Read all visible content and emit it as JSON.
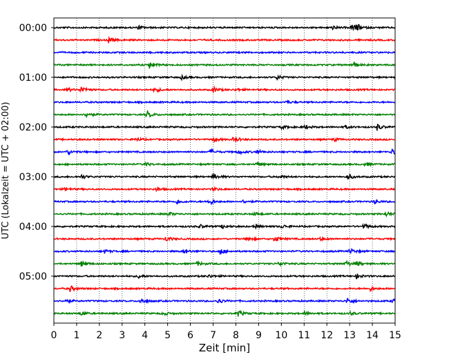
{
  "chart_data": {
    "type": "line",
    "title": "",
    "xlabel": "Zeit  [min]",
    "ylabel": "UTC (Lokalzeit = UTC + 02:00)",
    "xlim": [
      0,
      15
    ],
    "x_ticks": [
      "0",
      "1",
      "2",
      "3",
      "4",
      "5",
      "6",
      "7",
      "8",
      "9",
      "10",
      "11",
      "12",
      "13",
      "14",
      "15"
    ],
    "grid": "vertical dotted lines at each minute",
    "row_interval_min": 15,
    "row_count": 24,
    "y_tick_labels": [
      "00:00",
      "01:00",
      "02:00",
      "03:00",
      "04:00",
      "05:00"
    ],
    "trace_colors": [
      "#000000",
      "#ff0000",
      "#0000ff",
      "#008000"
    ],
    "series": [
      {
        "start": "00:00",
        "events": [
          {
            "t": 3.7,
            "a": 0.3
          },
          {
            "t": 12.2,
            "a": 0.3
          },
          {
            "t": 13.1,
            "a": 0.55
          },
          {
            "t": 13.3,
            "a": 0.5
          }
        ]
      },
      {
        "start": "00:15",
        "events": [
          {
            "t": 2.4,
            "a": 0.45
          }
        ]
      },
      {
        "start": "00:30",
        "events": []
      },
      {
        "start": "00:45",
        "events": [
          {
            "t": 4.2,
            "a": 0.55
          },
          {
            "t": 13.1,
            "a": 0.6
          }
        ]
      },
      {
        "start": "01:00",
        "events": [
          {
            "t": 5.6,
            "a": 0.3
          },
          {
            "t": 9.8,
            "a": 0.35
          }
        ]
      },
      {
        "start": "01:15",
        "events": [
          {
            "t": 0.6,
            "a": 0.3
          },
          {
            "t": 1.2,
            "a": 0.55
          },
          {
            "t": 4.4,
            "a": 0.45
          },
          {
            "t": 7.0,
            "a": 0.4
          },
          {
            "t": 8.0,
            "a": 0.2
          }
        ]
      },
      {
        "start": "01:30",
        "events": [
          {
            "t": 10.2,
            "a": 0.2
          }
        ]
      },
      {
        "start": "01:45",
        "events": [
          {
            "t": 1.4,
            "a": 0.45
          },
          {
            "t": 4.1,
            "a": 0.5
          }
        ]
      },
      {
        "start": "02:00",
        "events": [
          {
            "t": 10.0,
            "a": 0.3
          },
          {
            "t": 11.0,
            "a": 0.35
          },
          {
            "t": 12.8,
            "a": 0.25
          },
          {
            "t": 14.2,
            "a": 0.5
          }
        ]
      },
      {
        "start": "02:15",
        "events": [
          {
            "t": 3.6,
            "a": 0.3
          },
          {
            "t": 7.0,
            "a": 0.35
          },
          {
            "t": 7.9,
            "a": 0.55
          },
          {
            "t": 12.3,
            "a": 0.25
          }
        ]
      },
      {
        "start": "02:30",
        "events": [
          {
            "t": 0.6,
            "a": 0.4
          },
          {
            "t": 6.9,
            "a": 0.35
          },
          {
            "t": 8.1,
            "a": 0.35
          },
          {
            "t": 8.9,
            "a": 0.35
          },
          {
            "t": 14.8,
            "a": 0.5
          }
        ]
      },
      {
        "start": "02:45",
        "events": [
          {
            "t": 4.0,
            "a": 0.3
          },
          {
            "t": 8.9,
            "a": 0.35
          },
          {
            "t": 13.7,
            "a": 0.3
          }
        ]
      },
      {
        "start": "03:00",
        "events": [
          {
            "t": 1.2,
            "a": 0.3
          },
          {
            "t": 7.0,
            "a": 0.5
          },
          {
            "t": 9.9,
            "a": 0.3
          },
          {
            "t": 12.9,
            "a": 0.5
          }
        ]
      },
      {
        "start": "03:15",
        "events": [
          {
            "t": 0.5,
            "a": 0.3
          },
          {
            "t": 4.5,
            "a": 0.25
          },
          {
            "t": 7.0,
            "a": 0.25
          }
        ]
      },
      {
        "start": "03:30",
        "events": [
          {
            "t": 5.4,
            "a": 0.35
          },
          {
            "t": 6.8,
            "a": 0.6
          },
          {
            "t": 8.3,
            "a": 0.25
          },
          {
            "t": 14.1,
            "a": 0.3
          }
        ]
      },
      {
        "start": "03:45",
        "events": [
          {
            "t": 5.0,
            "a": 0.35
          },
          {
            "t": 8.8,
            "a": 0.3
          },
          {
            "t": 14.6,
            "a": 0.35
          }
        ]
      },
      {
        "start": "04:00",
        "events": [
          {
            "t": 6.4,
            "a": 0.3
          },
          {
            "t": 7.4,
            "a": 0.35
          },
          {
            "t": 8.8,
            "a": 0.35
          },
          {
            "t": 10.0,
            "a": 0.3
          },
          {
            "t": 13.6,
            "a": 0.45
          }
        ]
      },
      {
        "start": "04:15",
        "events": [
          {
            "t": 4.9,
            "a": 0.4
          },
          {
            "t": 8.5,
            "a": 0.35
          },
          {
            "t": 9.7,
            "a": 0.5
          },
          {
            "t": 11.7,
            "a": 0.25
          }
        ]
      },
      {
        "start": "04:30",
        "events": [
          {
            "t": 2.2,
            "a": 0.3
          },
          {
            "t": 5.7,
            "a": 0.4
          },
          {
            "t": 7.3,
            "a": 0.5
          },
          {
            "t": 13.0,
            "a": 0.5
          }
        ]
      },
      {
        "start": "04:45",
        "events": [
          {
            "t": 1.2,
            "a": 0.4
          },
          {
            "t": 6.3,
            "a": 0.3
          },
          {
            "t": 9.9,
            "a": 0.35
          },
          {
            "t": 12.8,
            "a": 0.5
          },
          {
            "t": 13.3,
            "a": 0.4
          }
        ]
      },
      {
        "start": "05:00",
        "events": [
          {
            "t": 3.7,
            "a": 0.3
          },
          {
            "t": 6.8,
            "a": 0.25
          },
          {
            "t": 13.3,
            "a": 0.4
          }
        ]
      },
      {
        "start": "05:15",
        "events": [
          {
            "t": 0.7,
            "a": 0.5
          },
          {
            "t": 13.9,
            "a": 0.3
          }
        ]
      },
      {
        "start": "05:30",
        "events": [
          {
            "t": 0.5,
            "a": 0.3
          },
          {
            "t": 3.8,
            "a": 0.5
          },
          {
            "t": 7.2,
            "a": 0.45
          },
          {
            "t": 12.9,
            "a": 0.5
          },
          {
            "t": 14.9,
            "a": 0.3
          }
        ]
      },
      {
        "start": "05:45",
        "events": [
          {
            "t": 1.2,
            "a": 0.3
          },
          {
            "t": 4.8,
            "a": 0.3
          },
          {
            "t": 8.1,
            "a": 0.45
          },
          {
            "t": 11.0,
            "a": 0.3
          },
          {
            "t": 13.0,
            "a": 0.3
          }
        ]
      }
    ]
  }
}
